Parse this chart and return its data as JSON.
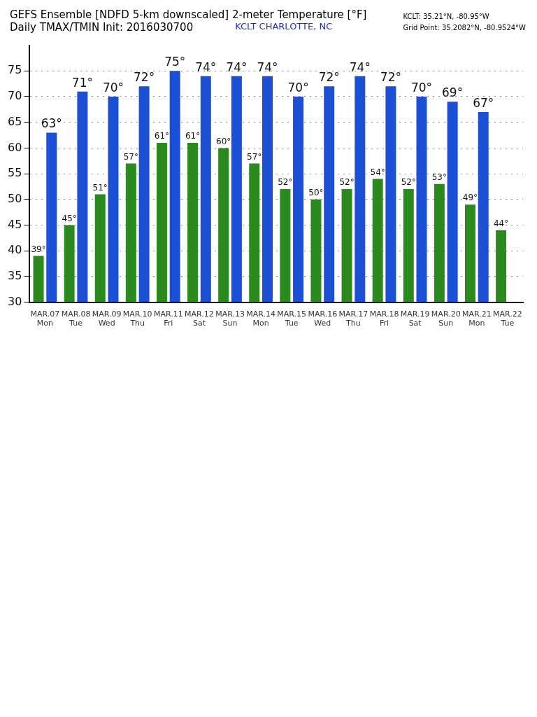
{
  "chart_data": {
    "type": "bar",
    "title": "GEFS Ensemble [NDFD 5-km downscaled] 2-meter Temperature [°F]",
    "subtitle": "Daily TMAX/TMIN Init: 2016030700",
    "annotations": [
      "KCLT CHARLOTTE, NC",
      "KCLT: 35.21°N, -80.95°W",
      "Grid Point: 35.2082°N, -80.9524°W"
    ],
    "categories": [
      "MAR.07\nMon",
      "MAR.08\nTue",
      "MAR.09\nWed",
      "MAR.10\nThu",
      "MAR.11\nFri",
      "MAR.12\nSat",
      "MAR.13\nSun",
      "MAR.14\nMon",
      "MAR.15\nTue",
      "MAR.16\nWed",
      "MAR.17\nThu",
      "MAR.18\nFri",
      "MAR.19\nSat",
      "MAR.20\nSun",
      "MAR.21\nMon",
      "MAR.22\nTue"
    ],
    "series": [
      {
        "color": "#2a8a1e",
        "values": [
          39,
          45,
          51,
          57,
          61,
          61,
          60,
          57,
          52,
          50,
          52,
          54,
          52,
          53,
          49,
          44
        ],
        "value_labels": [
          "39°",
          "45°",
          "51°",
          "57°",
          "61°",
          "61°",
          "60°",
          "57°",
          "52°",
          "50°",
          "52°",
          "54°",
          "52°",
          "53°",
          "49°",
          "44°"
        ]
      },
      {
        "color": "#1a4fd6",
        "values": [
          63,
          71,
          70,
          72,
          75,
          74,
          74,
          74,
          70,
          72,
          74,
          72,
          70,
          69,
          67,
          null
        ],
        "value_labels": [
          "63°",
          "71°",
          "70°",
          "72°",
          "75°",
          "74°",
          "74°",
          "74°",
          "70°",
          "72°",
          "74°",
          "72°",
          "70°",
          "69°",
          "67°",
          null
        ]
      }
    ],
    "ylim": [
      30,
      80
    ],
    "yticks": [
      30,
      35,
      40,
      45,
      50,
      55,
      60,
      65,
      70,
      75
    ],
    "grid": "y",
    "legend": false
  }
}
